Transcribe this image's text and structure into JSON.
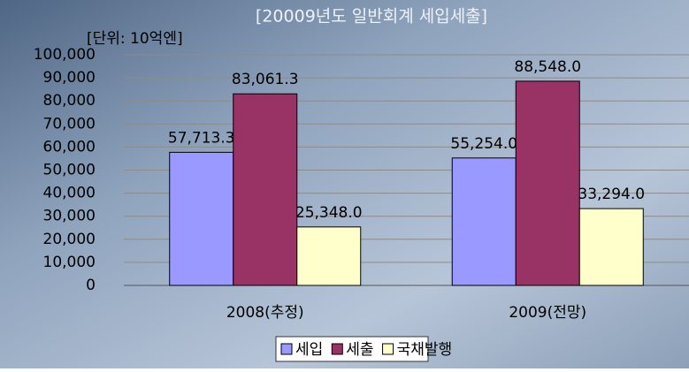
{
  "chart_data": {
    "type": "bar",
    "title": "[20009년도 일반회계 세입세출]",
    "unit_label": "[단위: 10억엔]",
    "categories": [
      "2008(추정)",
      "2009(전망)"
    ],
    "series": [
      {
        "name": "세입",
        "color": "#9999ff",
        "values": [
          57713.3,
          55254.0
        ],
        "value_labels": [
          "57,713.3",
          "55,254.0"
        ]
      },
      {
        "name": "세출",
        "color": "#993366",
        "values": [
          83061.3,
          88548.0
        ],
        "value_labels": [
          "83,061.3",
          "88,548.0"
        ]
      },
      {
        "name": "국채발행",
        "color": "#ffffcc",
        "values": [
          25348.0,
          33294.0
        ],
        "value_labels": [
          "25,348.0",
          "33,294.0"
        ]
      }
    ],
    "ylim": [
      0,
      100000
    ],
    "yticks": [
      0,
      {
        "value": 10000,
        "label": "10,000"
      },
      {
        "value": 20000,
        "label": "20,000"
      },
      {
        "value": 30000,
        "label": "30,000"
      },
      {
        "value": 40000,
        "label": "40,000"
      },
      {
        "value": 50000,
        "label": "50,000"
      },
      {
        "value": 60000,
        "label": "60,000"
      },
      {
        "value": 70000,
        "label": "70,000"
      },
      {
        "value": 80000,
        "label": "80,000"
      },
      {
        "value": 90000,
        "label": "90,000"
      },
      {
        "value": 100000,
        "label": "100,000"
      }
    ],
    "grid": true,
    "legend": "bottom"
  }
}
